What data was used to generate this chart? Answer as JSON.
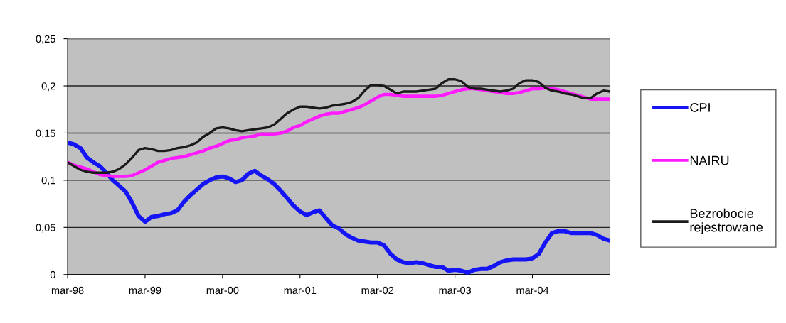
{
  "chart_data": {
    "type": "line",
    "categories": [
      "mar-98",
      null,
      null,
      null,
      null,
      null,
      null,
      null,
      null,
      null,
      null,
      null,
      "mar-99",
      null,
      null,
      null,
      null,
      null,
      null,
      null,
      null,
      null,
      null,
      null,
      "mar-00",
      null,
      null,
      null,
      null,
      null,
      null,
      null,
      null,
      null,
      null,
      null,
      "mar-01",
      null,
      null,
      null,
      null,
      null,
      null,
      null,
      null,
      null,
      null,
      null,
      "mar-02",
      null,
      null,
      null,
      null,
      null,
      null,
      null,
      null,
      null,
      null,
      null,
      "mar-03",
      null,
      null,
      null,
      null,
      null,
      null,
      null,
      null,
      null,
      null,
      null,
      "mar-04",
      null,
      null,
      null,
      null,
      null,
      null,
      null,
      null,
      null,
      null,
      null,
      null
    ],
    "series": [
      {
        "name": "CPI",
        "color": "#1414f5",
        "values": [
          0.14,
          0.138,
          0.134,
          0.124,
          0.119,
          0.115,
          0.108,
          0.1,
          0.094,
          0.088,
          0.076,
          0.062,
          0.056,
          0.061,
          0.062,
          0.064,
          0.065,
          0.068,
          0.077,
          0.084,
          0.09,
          0.096,
          0.1,
          0.103,
          0.104,
          0.102,
          0.098,
          0.1,
          0.107,
          0.11,
          0.105,
          0.101,
          0.096,
          0.089,
          0.081,
          0.073,
          0.067,
          0.063,
          0.066,
          0.068,
          0.06,
          0.052,
          0.049,
          0.043,
          0.039,
          0.036,
          0.035,
          0.034,
          0.034,
          0.031,
          0.022,
          0.016,
          0.013,
          0.012,
          0.013,
          0.012,
          0.01,
          0.008,
          0.008,
          0.004,
          0.005,
          0.004,
          0.002,
          0.005,
          0.006,
          0.006,
          0.009,
          0.013,
          0.015,
          0.016,
          0.016,
          0.016,
          0.017,
          0.022,
          0.034,
          0.044,
          0.046,
          0.046,
          0.044,
          0.044,
          0.044,
          0.044,
          0.042,
          0.038,
          0.036
        ]
      },
      {
        "name": "NAIRU",
        "color": "#ff1aff",
        "values": [
          0.119,
          0.116,
          0.114,
          0.112,
          0.109,
          0.106,
          0.105,
          0.104,
          0.104,
          0.104,
          0.105,
          0.108,
          0.111,
          0.115,
          0.119,
          0.121,
          0.123,
          0.124,
          0.125,
          0.127,
          0.129,
          0.131,
          0.134,
          0.136,
          0.139,
          0.142,
          0.143,
          0.145,
          0.146,
          0.147,
          0.149,
          0.149,
          0.149,
          0.15,
          0.152,
          0.156,
          0.158,
          0.162,
          0.165,
          0.168,
          0.17,
          0.171,
          0.171,
          0.173,
          0.175,
          0.177,
          0.18,
          0.184,
          0.188,
          0.191,
          0.191,
          0.19,
          0.189,
          0.189,
          0.189,
          0.189,
          0.189,
          0.189,
          0.19,
          0.192,
          0.194,
          0.196,
          0.197,
          0.197,
          0.196,
          0.195,
          0.194,
          0.193,
          0.192,
          0.192,
          0.193,
          0.195,
          0.197,
          0.197,
          0.198,
          0.197,
          0.196,
          0.194,
          0.192,
          0.19,
          0.188,
          0.186,
          0.186,
          0.186,
          0.186
        ]
      },
      {
        "name": "Bezrobocie rejestrowane",
        "color": "#1a1a1a",
        "values": [
          0.119,
          0.115,
          0.111,
          0.109,
          0.108,
          0.108,
          0.108,
          0.109,
          0.112,
          0.117,
          0.124,
          0.132,
          0.134,
          0.133,
          0.131,
          0.131,
          0.132,
          0.134,
          0.135,
          0.137,
          0.14,
          0.146,
          0.15,
          0.155,
          0.156,
          0.155,
          0.153,
          0.152,
          0.153,
          0.154,
          0.155,
          0.156,
          0.159,
          0.165,
          0.171,
          0.175,
          0.178,
          0.178,
          0.177,
          0.176,
          0.177,
          0.179,
          0.18,
          0.181,
          0.183,
          0.187,
          0.195,
          0.201,
          0.201,
          0.2,
          0.196,
          0.192,
          0.194,
          0.194,
          0.194,
          0.195,
          0.196,
          0.197,
          0.203,
          0.207,
          0.207,
          0.205,
          0.199,
          0.197,
          0.197,
          0.196,
          0.195,
          0.194,
          0.195,
          0.197,
          0.203,
          0.206,
          0.206,
          0.204,
          0.198,
          0.195,
          0.194,
          0.192,
          0.191,
          0.189,
          0.187,
          0.187,
          0.192,
          0.195,
          0.194
        ]
      }
    ],
    "ylim": [
      0,
      0.25
    ],
    "yticks": [
      0,
      {
        "value": 0.05,
        "label": "0,05"
      },
      {
        "value": 0.1,
        "label": "0,1"
      },
      {
        "value": 0.15,
        "label": "0,15"
      },
      {
        "value": 0.2,
        "label": "0,2"
      },
      {
        "value": 0.25,
        "label": "0,25"
      }
    ],
    "grid": "y",
    "legend": "right",
    "marker": "none",
    "line_style": "solid"
  }
}
